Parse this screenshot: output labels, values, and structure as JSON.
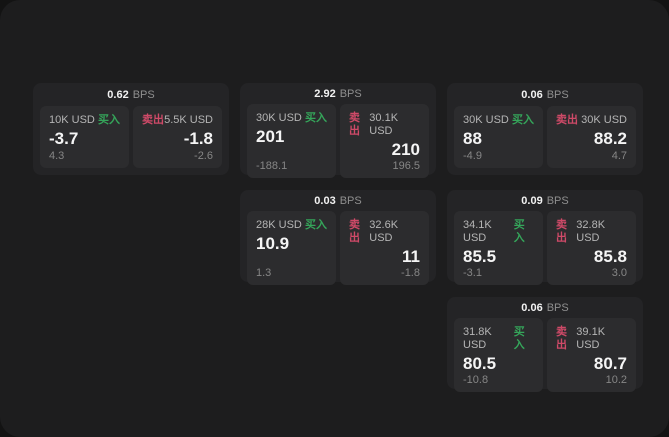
{
  "labels": {
    "buy": "买入",
    "sell": "卖出",
    "bps_unit": "BPS"
  },
  "colors": {
    "backdrop": "#131313",
    "surface": "#1d1d1e",
    "card_bg": "#242426",
    "panel_bg": "#2c2c2e",
    "buy_green": "#35a55a",
    "sell_red": "#cf4a68"
  },
  "cards": [
    {
      "bps": "0.62",
      "buy": {
        "amount": "10K USD",
        "value": "-3.7",
        "delta": "4.3"
      },
      "sell": {
        "amount": "5.5K USD",
        "value": "-1.8",
        "delta": "-2.6"
      }
    },
    {
      "bps": "2.92",
      "buy": {
        "amount": "30K USD",
        "value": "201",
        "delta": "-188.1"
      },
      "sell": {
        "amount": "30.1K USD",
        "value": "210",
        "delta": "196.5"
      }
    },
    {
      "bps": "0.06",
      "buy": {
        "amount": "30K USD",
        "value": "88",
        "delta": "-4.9"
      },
      "sell": {
        "amount": "30K USD",
        "value": "88.2",
        "delta": "4.7"
      }
    },
    {
      "bps": "0.03",
      "buy": {
        "amount": "28K USD",
        "value": "10.9",
        "delta": "1.3"
      },
      "sell": {
        "amount": "32.6K USD",
        "value": "11",
        "delta": "-1.8"
      }
    },
    {
      "bps": "0.09",
      "buy": {
        "amount": "34.1K USD",
        "value": "85.5",
        "delta": "-3.1"
      },
      "sell": {
        "amount": "32.8K USD",
        "value": "85.8",
        "delta": "3.0"
      }
    },
    {
      "bps": "0.06",
      "buy": {
        "amount": "31.8K USD",
        "value": "80.5",
        "delta": "-10.8"
      },
      "sell": {
        "amount": "39.1K USD",
        "value": "80.7",
        "delta": "10.2"
      }
    }
  ]
}
